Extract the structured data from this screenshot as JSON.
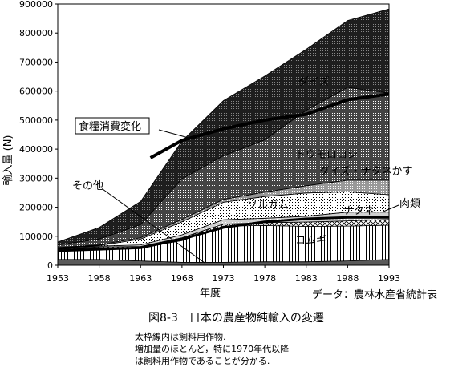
{
  "chart_data": {
    "type": "area",
    "stacked": true,
    "ylabel": "輸入量 (N)",
    "xlabel": "年度",
    "source": "データ：農林水産省統計表",
    "x": [
      1953,
      1958,
      1963,
      1968,
      1973,
      1978,
      1983,
      1988,
      1993
    ],
    "xlim": [
      1953,
      1993
    ],
    "ylim": [
      0,
      900000
    ],
    "yticks": [
      "0",
      "100000",
      "200000",
      "300000",
      "400000",
      "500000",
      "600000",
      "700000",
      "800000",
      "900000"
    ],
    "xticks": [
      "1953",
      "1958",
      "1963",
      "1968",
      "1973",
      "1978",
      "1983",
      "1988",
      "1993"
    ],
    "series": [
      {
        "name": "その他",
        "values": [
          20000,
          20000,
          15000,
          10000,
          10000,
          12000,
          12000,
          15000,
          20000
        ],
        "color": "#555555"
      },
      {
        "name": "コムギ",
        "values": [
          35000,
          40000,
          45000,
          75000,
          125000,
          125000,
          122000,
          120000,
          118000
        ],
        "color": "#ffffff"
      },
      {
        "name": "肉類",
        "values": [
          2000,
          3000,
          5000,
          10000,
          7000,
          10000,
          15000,
          18000,
          20000
        ],
        "color": "#e0e0e0"
      },
      {
        "name": "ナタネ",
        "values": [
          2000,
          3000,
          5000,
          10000,
          15000,
          15000,
          20000,
          30000,
          25000
        ],
        "color": "#cfcfcf"
      },
      {
        "name": "ソルガム",
        "values": [
          1000,
          2000,
          20000,
          45000,
          60000,
          75000,
          80000,
          70000,
          60000
        ],
        "color": "#f4f4f4"
      },
      {
        "name": "ダイズ・ナタネかす",
        "values": [
          1000,
          2000,
          5000,
          8000,
          10000,
          15000,
          25000,
          40000,
          50000
        ],
        "color": "#9a9a9a"
      },
      {
        "name": "トウモロコシ",
        "values": [
          9000,
          20000,
          45000,
          140000,
          150000,
          180000,
          260000,
          320000,
          300000
        ],
        "color": "#bdbdbd"
      },
      {
        "name": "ダイズ",
        "values": [
          10000,
          40000,
          80000,
          130000,
          190000,
          220000,
          210000,
          230000,
          290000
        ],
        "color": "#2a2a2a"
      }
    ],
    "feed_line": {
      "name": "食糧消費変化",
      "values": [
        null,
        null,
        370000,
        430000,
        470000,
        500000,
        520000,
        570000,
        590000
      ]
    },
    "feed_total_line": {
      "values": [
        50000,
        55000,
        60000,
        90000,
        130000,
        150000,
        160000,
        165000,
        165000
      ]
    },
    "annotations": {
      "daizu": "ダイズ",
      "feed_change": "食糧消費変化",
      "tomorokoshi": "トウモロコシ",
      "daizu_natane_kasu": "ダイズ・ナタネかす",
      "sonota": "その他",
      "sorugamu": "ソルガム",
      "nikurui": "肉類",
      "natane": "ナタネ",
      "komugi": "コムギ"
    }
  },
  "caption": "図8-3　日本の農産物純輸入の変遷",
  "notes": [
    "太枠線内は飼料用作物.",
    "増加量のほとんど，特に1970年代以降",
    "は飼料用作物であることが分かる."
  ]
}
